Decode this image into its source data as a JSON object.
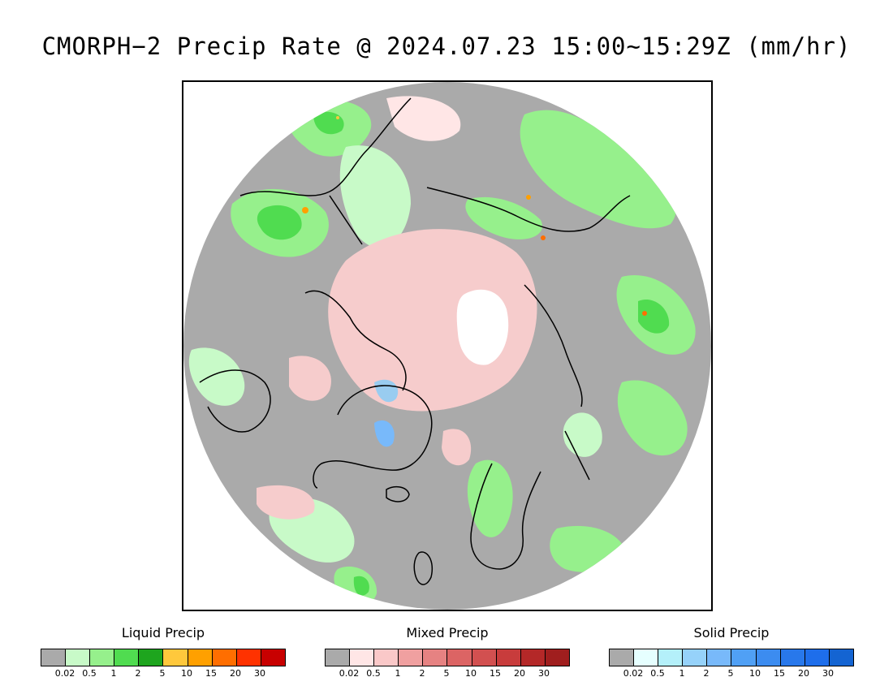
{
  "title": "CMORPH−2 Precip Rate @ 2024.07.23 15:00~15:29Z (mm/hr)",
  "colors": {
    "no_precip": "#aaaaaa",
    "ocean_disk": "#a8a8a8",
    "polar_gap": "#ffffff",
    "coastline": "#000000",
    "liquid_light": "#9ef29a",
    "liquid_mid": "#4fd64f",
    "liquid_heavy": "#1f9c1f",
    "mixed_light": "#f6cccc",
    "solid_light": "#99ccf0"
  },
  "legends": [
    {
      "title": "Liquid Precip",
      "colors": [
        "#aaaaaa",
        "#c8fac8",
        "#96f08c",
        "#50dc50",
        "#1ea51e",
        "#ffc83c",
        "#ffa000",
        "#ff6e00",
        "#ff3200",
        "#c80000"
      ],
      "ticks": [
        "0.02",
        "0.5",
        "1",
        "2",
        "5",
        "10",
        "15",
        "20",
        "30"
      ]
    },
    {
      "title": "Mixed Precip",
      "colors": [
        "#aaaaaa",
        "#ffe6e6",
        "#fac8c8",
        "#f0a0a0",
        "#e68282",
        "#dc6464",
        "#d25050",
        "#c83c3c",
        "#b42828",
        "#a01e1e"
      ],
      "ticks": [
        "0.02",
        "0.5",
        "1",
        "2",
        "5",
        "10",
        "15",
        "20",
        "30"
      ]
    },
    {
      "title": "Solid Precip",
      "colors": [
        "#aaaaaa",
        "#e6ffff",
        "#b4f0fa",
        "#96d2fa",
        "#78b9fa",
        "#50a0f5",
        "#3c8cf0",
        "#2878eb",
        "#1e6eeb",
        "#1464d2"
      ],
      "ticks": [
        "0.02",
        "0.5",
        "1",
        "2",
        "5",
        "10",
        "15",
        "20",
        "30"
      ]
    }
  ]
}
